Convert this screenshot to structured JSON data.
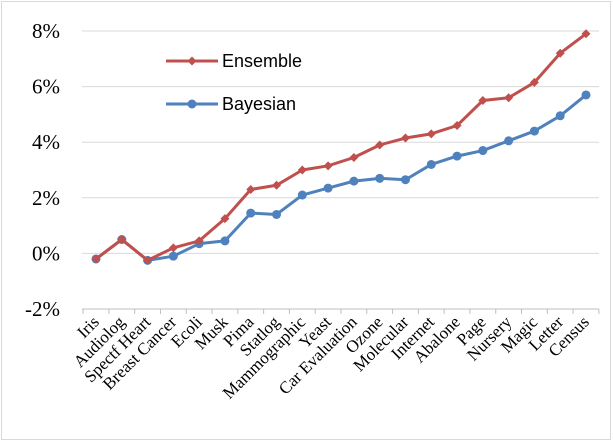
{
  "chart_data": {
    "type": "line",
    "title": "",
    "xlabel": "",
    "ylabel": "",
    "categories": [
      "Iris",
      "Audiolog",
      "Spectf Heart",
      "Breast Cancer",
      "Ecoli",
      "Musk",
      "Pima",
      "Statlog",
      "Mammographic",
      "Yeast",
      "Car Evaluation",
      "Ozone",
      "Molecular",
      "Internet",
      "Abalone",
      "Page",
      "Nursery",
      "Magic",
      "Letter",
      "Census"
    ],
    "ylim": [
      -2,
      8
    ],
    "yticks": [
      -2,
      0,
      2,
      4,
      6,
      8
    ],
    "ytick_labels": [
      "-2%",
      "0%",
      "2%",
      "4%",
      "6%",
      "8%"
    ],
    "grid": "horizontal",
    "legend_position": "upper-left",
    "series": [
      {
        "name": "Ensemble",
        "color": "#c0504d",
        "marker": "diamond",
        "values": [
          -0.2,
          0.5,
          -0.25,
          0.2,
          0.45,
          1.25,
          2.3,
          2.45,
          3.0,
          3.15,
          3.45,
          3.9,
          4.15,
          4.3,
          4.6,
          5.5,
          5.6,
          6.15,
          7.2,
          7.9
        ]
      },
      {
        "name": "Bayesian",
        "color": "#4f81bd",
        "marker": "circle",
        "values": [
          -0.2,
          0.5,
          -0.25,
          -0.1,
          0.35,
          0.45,
          1.45,
          1.4,
          2.1,
          2.35,
          2.6,
          2.7,
          2.65,
          3.2,
          3.5,
          3.7,
          4.05,
          4.4,
          4.95,
          5.7
        ]
      }
    ]
  }
}
